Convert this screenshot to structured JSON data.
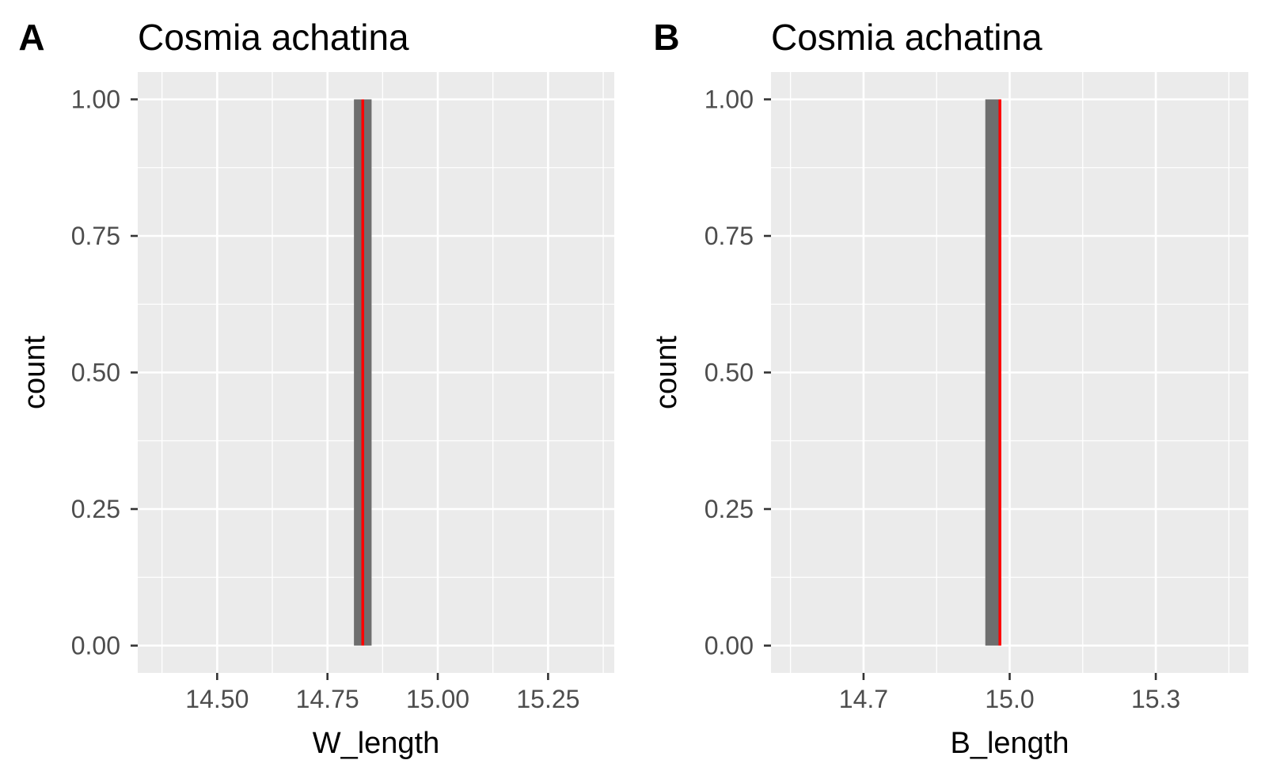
{
  "colors": {
    "panel_background": "#ebebeb",
    "grid": "#ffffff",
    "bar_fill": "#6e6e6e",
    "reference_line": "#ff0000",
    "tick_text": "#4d4d4d"
  },
  "chart_data": [
    {
      "type": "bar",
      "tag": "A",
      "title": "Cosmia achatina",
      "xlabel": "W_length",
      "ylabel": "count",
      "xlim": [
        14.32,
        15.4
      ],
      "ylim": [
        -0.05,
        1.05
      ],
      "x_ticks": [
        14.5,
        14.75,
        15.0,
        15.25
      ],
      "x_tick_labels": [
        "14.50",
        "14.75",
        "15.00",
        "15.25"
      ],
      "y_ticks": [
        0,
        0.25,
        0.5,
        0.75,
        1.0
      ],
      "y_tick_labels": [
        "0.00",
        "0.25",
        "0.50",
        "0.75",
        "1.00"
      ],
      "bars": [
        {
          "xmin": 14.81,
          "xmax": 14.85,
          "count": 1
        }
      ],
      "vline": 14.83,
      "grid": true
    },
    {
      "type": "bar",
      "tag": "B",
      "title": "Cosmia achatina",
      "xlabel": "B_length",
      "ylabel": "count",
      "xlim": [
        14.51,
        15.49
      ],
      "ylim": [
        -0.05,
        1.05
      ],
      "x_ticks": [
        14.7,
        15.0,
        15.3
      ],
      "x_tick_labels": [
        "14.7",
        "15.0",
        "15.3"
      ],
      "y_ticks": [
        0,
        0.25,
        0.5,
        0.75,
        1.0
      ],
      "y_tick_labels": [
        "0.00",
        "0.25",
        "0.50",
        "0.75",
        "1.00"
      ],
      "bars": [
        {
          "xmin": 14.95,
          "xmax": 14.98,
          "count": 1
        }
      ],
      "vline": 14.98,
      "grid": true
    }
  ]
}
